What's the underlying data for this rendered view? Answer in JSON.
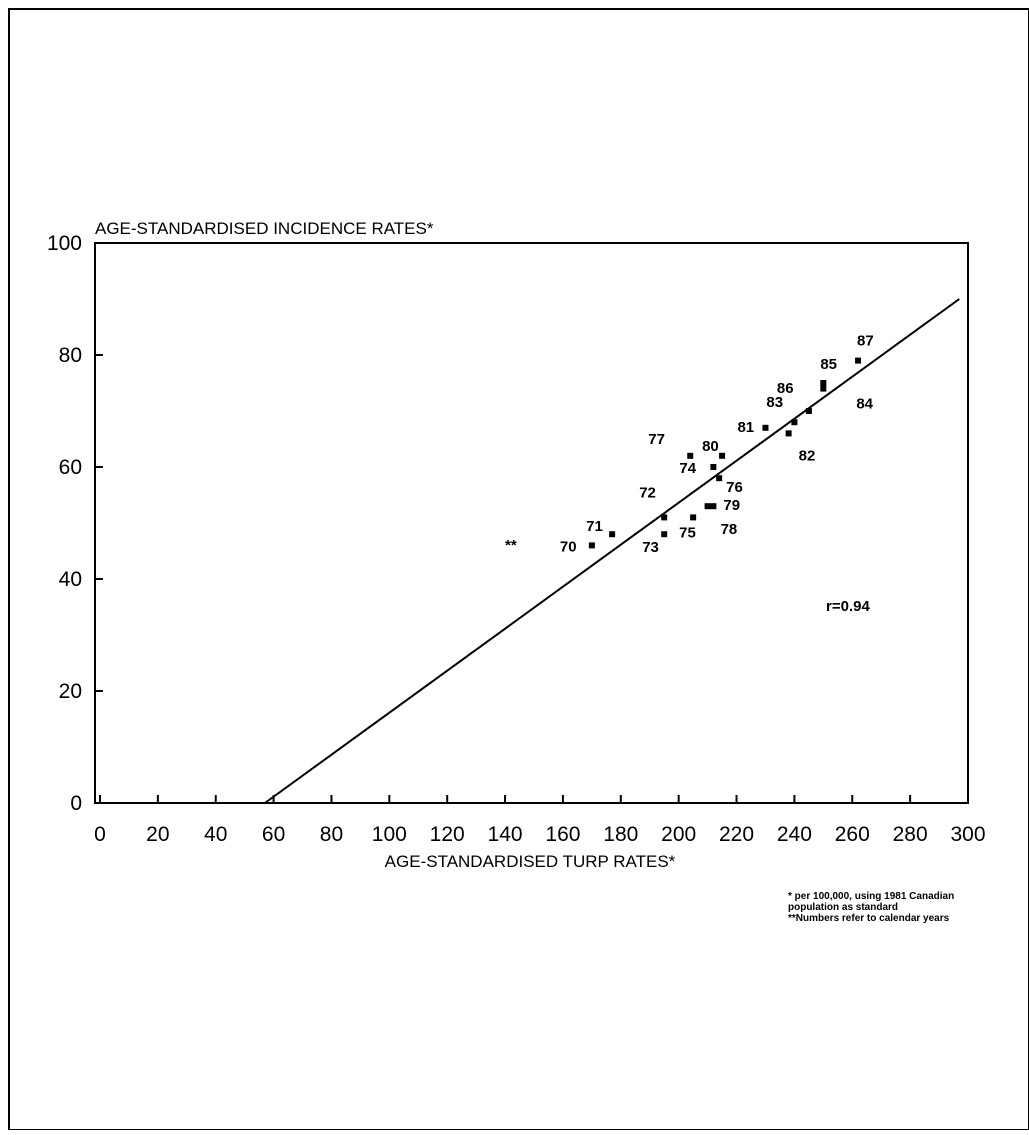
{
  "chart_data": {
    "type": "scatter",
    "ylabel": "AGE-STANDARDISED INCIDENCE RATES*",
    "xlabel": "AGE-STANDARDISED TURP RATES*",
    "xlim": [
      0,
      300
    ],
    "ylim": [
      0,
      100
    ],
    "x_ticks": [
      "0",
      "20",
      "40",
      "60",
      "80",
      "100",
      "120",
      "140",
      "160",
      "180",
      "200",
      "220",
      "240",
      "260",
      "280",
      "300"
    ],
    "y_ticks": [
      "0",
      "20",
      "40",
      "60",
      "80",
      "100"
    ],
    "grid": false,
    "points": [
      {
        "label": "70",
        "x": 170,
        "y": 46
      },
      {
        "label": "71",
        "x": 177,
        "y": 48
      },
      {
        "label": "72",
        "x": 195,
        "y": 51
      },
      {
        "label": "73",
        "x": 195,
        "y": 48
      },
      {
        "label": "74",
        "x": 212,
        "y": 60
      },
      {
        "label": "75",
        "x": 205,
        "y": 51
      },
      {
        "label": "76",
        "x": 214,
        "y": 58
      },
      {
        "label": "77",
        "x": 204,
        "y": 62
      },
      {
        "label": "78",
        "x": 210,
        "y": 53
      },
      {
        "label": "79",
        "x": 212,
        "y": 53
      },
      {
        "label": "80",
        "x": 215,
        "y": 62
      },
      {
        "label": "81",
        "x": 230,
        "y": 67
      },
      {
        "label": "82",
        "x": 238,
        "y": 66
      },
      {
        "label": "83",
        "x": 240,
        "y": 68
      },
      {
        "label": "84",
        "x": 250,
        "y": 74
      },
      {
        "label": "85",
        "x": 250,
        "y": 75
      },
      {
        "label": "86",
        "x": 245,
        "y": 70
      },
      {
        "label": "87",
        "x": 262,
        "y": 79
      }
    ],
    "legend_marker": "**",
    "regression_line": {
      "x": [
        57,
        297
      ],
      "y": [
        0,
        90
      ]
    },
    "annotation": "r=0.94",
    "footnotes": [
      "* per 100,000, using 1981 Canadian",
      "population as standard",
      "**Numbers refer to calendar years"
    ]
  }
}
